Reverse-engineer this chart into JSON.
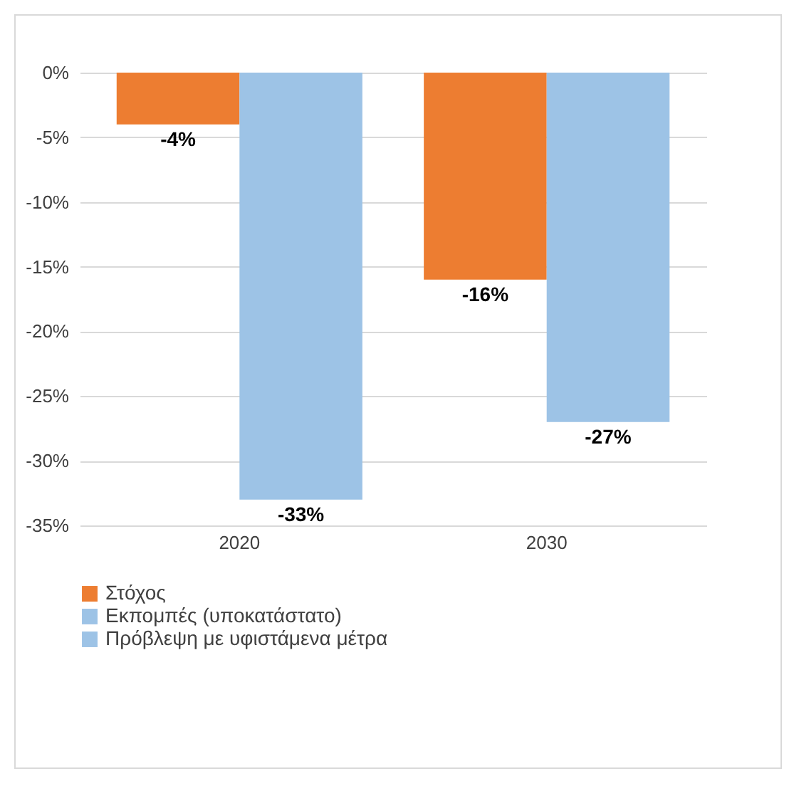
{
  "chart_data": {
    "type": "bar",
    "categories": [
      "2020",
      "2030"
    ],
    "series": [
      {
        "name": "Στόχος",
        "color": "#ed7d31",
        "values": [
          -4,
          -16
        ],
        "value_labels": [
          "-4%",
          "-16%"
        ]
      },
      {
        "name": "Εκπομπές (υποκατάστατο)",
        "color": "#9dc3e6",
        "values": [
          -33,
          null
        ],
        "value_labels": [
          "-33%",
          null
        ]
      },
      {
        "name": "Πρόβλεψη με υφιστάμενα μέτρα",
        "color": "#9dc3e6",
        "values": [
          null,
          -27
        ],
        "value_labels": [
          null,
          "-27%"
        ]
      }
    ],
    "ylim": [
      -35,
      0
    ],
    "yticks": [
      {
        "value": 0,
        "label": "0%"
      },
      {
        "value": -5,
        "label": "-5%"
      },
      {
        "value": -10,
        "label": "-10%"
      },
      {
        "value": -15,
        "label": "-15%"
      },
      {
        "value": -20,
        "label": "-20%"
      },
      {
        "value": -25,
        "label": "-25%"
      },
      {
        "value": -30,
        "label": "-30%"
      },
      {
        "value": -35,
        "label": "-35%"
      }
    ],
    "grid": "y",
    "legend": "bottom"
  }
}
